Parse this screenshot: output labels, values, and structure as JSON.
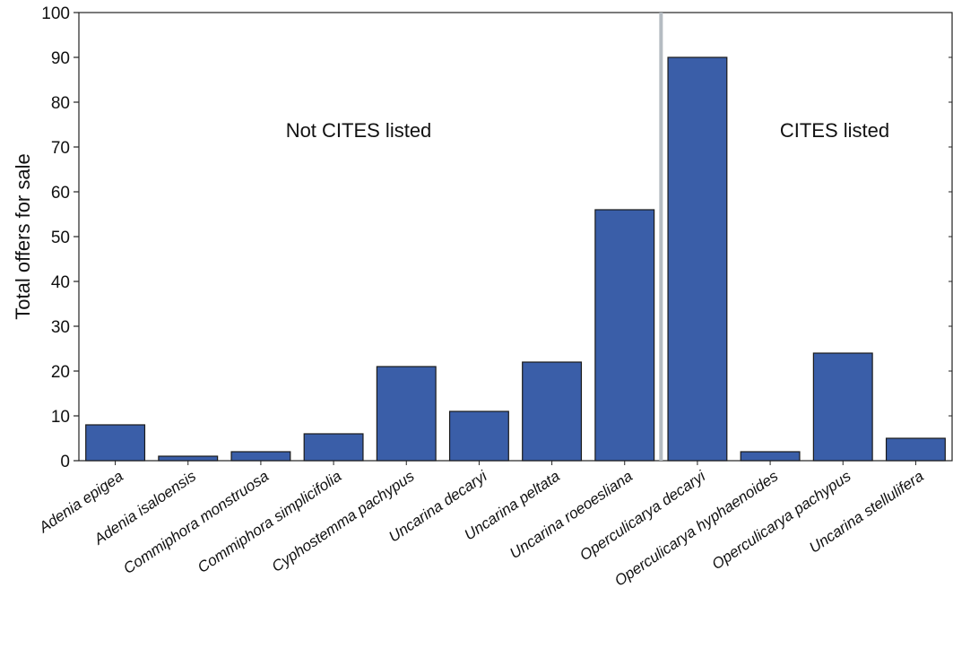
{
  "chart_data": {
    "type": "bar",
    "title": "",
    "xlabel": "",
    "ylabel": "Total offers for sale",
    "ylim": [
      0,
      100
    ],
    "yticks": [
      0,
      10,
      20,
      30,
      40,
      50,
      60,
      70,
      80,
      90,
      100
    ],
    "grid": false,
    "legend": "none",
    "bar_color": "#3a5ea8",
    "divider_color": "#b5bcc2",
    "categories": [
      "Adenia epigea",
      "Adenia isaloensis",
      "Commiphora monstruosa",
      "Commiphora simplicifolia",
      "Cyphostemma pachypus",
      "Uncarina decaryi",
      "Uncarina peltata",
      "Uncarina roeoesliana",
      "Operculicarya decaryi",
      "Operculicarya hyphaenoides",
      "Operculicarya pachypus",
      "Uncarina stellulifera"
    ],
    "values": [
      8,
      1,
      2,
      6,
      21,
      11,
      22,
      56,
      90,
      2,
      24,
      5
    ],
    "groups": [
      {
        "label": "Not CITES listed",
        "categories": [
          "Adenia epigea",
          "Adenia isaloensis",
          "Commiphora monstruosa",
          "Commiphora simplicifolia",
          "Cyphostemma pachypus",
          "Uncarina decaryi",
          "Uncarina peltata",
          "Uncarina roeoesliana"
        ]
      },
      {
        "label": "CITES listed",
        "categories": [
          "Operculicarya decaryi",
          "Operculicarya hyphaenoides",
          "Operculicarya pachypus",
          "Uncarina stellulifera"
        ]
      }
    ]
  }
}
